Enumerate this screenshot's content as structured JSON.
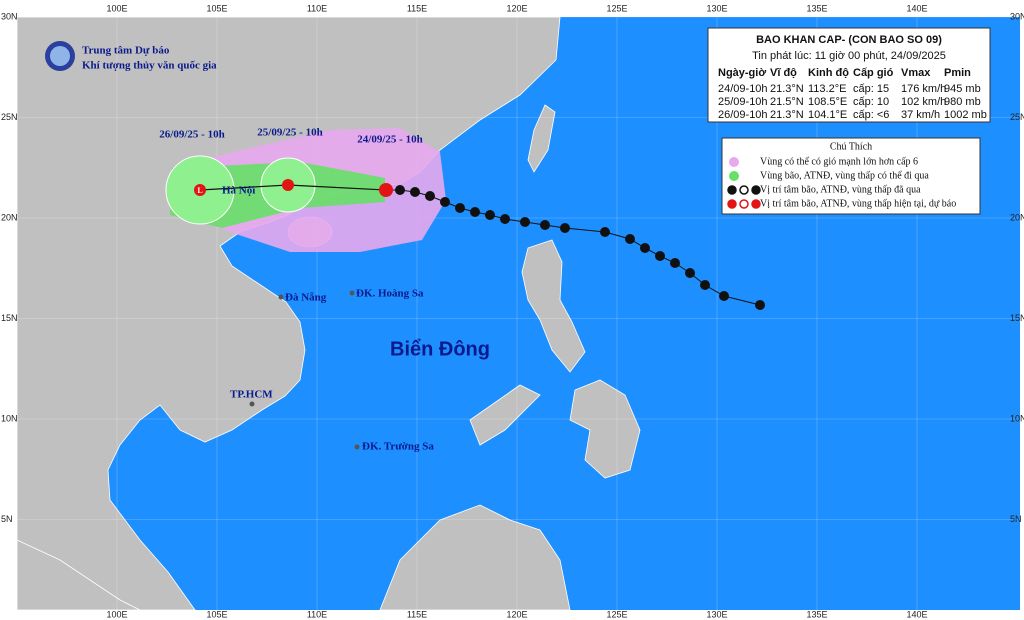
{
  "header": {
    "org_line1": "Trung tâm Dự báo",
    "org_line2": "Khí tượng thủy văn quốc gia"
  },
  "bulletin": {
    "title": "BAO KHAN CAP- (CON BAO SO 09)",
    "issued": "Tin phát lúc: 11 giờ 00 phút, 24/09/2025",
    "columns": [
      "Ngày-giờ",
      "Vĩ độ",
      "Kinh độ",
      "Cấp gió",
      "Vmax",
      "Pmin"
    ],
    "rows": [
      [
        "24/09-10h",
        "21.3°N",
        "113.2°E",
        "cấp: 15",
        "176 km/h",
        "945 mb"
      ],
      [
        "25/09-10h",
        "21.5°N",
        "108.5°E",
        "cấp: 10",
        "102 km/h",
        "980 mb"
      ],
      [
        "26/09-10h",
        "21.3°N",
        "104.1°E",
        "cấp: <6",
        "37 km/h",
        "1002 mb"
      ]
    ]
  },
  "legend": {
    "title": "Chú Thích",
    "items": [
      "Vùng có thể có gió mạnh lớn hơn cấp 6",
      "Vùng bão, ATNĐ, vùng thấp có thể đi qua",
      "Vị trí tâm bão, ATNĐ, vùng thấp đã qua",
      "Vị trí tâm bão, ATNĐ, vùng thấp hiện tại, dự báo"
    ]
  },
  "map": {
    "lon_labels": [
      "100E",
      "105E",
      "110E",
      "115E",
      "120E",
      "125E",
      "130E",
      "135E",
      "140E"
    ],
    "lat_labels": [
      "30N",
      "25N",
      "20N",
      "15N",
      "10N",
      "5N"
    ],
    "track_labels": [
      "26/09/25 - 10h",
      "25/09/25 - 10h",
      "24/09/25 - 10h"
    ],
    "places": [
      "Hà Nội",
      "Đà Nẵng",
      "ĐK. Hoàng Sa",
      "TP.HCM",
      "ĐK. Trường Sa"
    ],
    "sea": "Biển Đông"
  }
}
